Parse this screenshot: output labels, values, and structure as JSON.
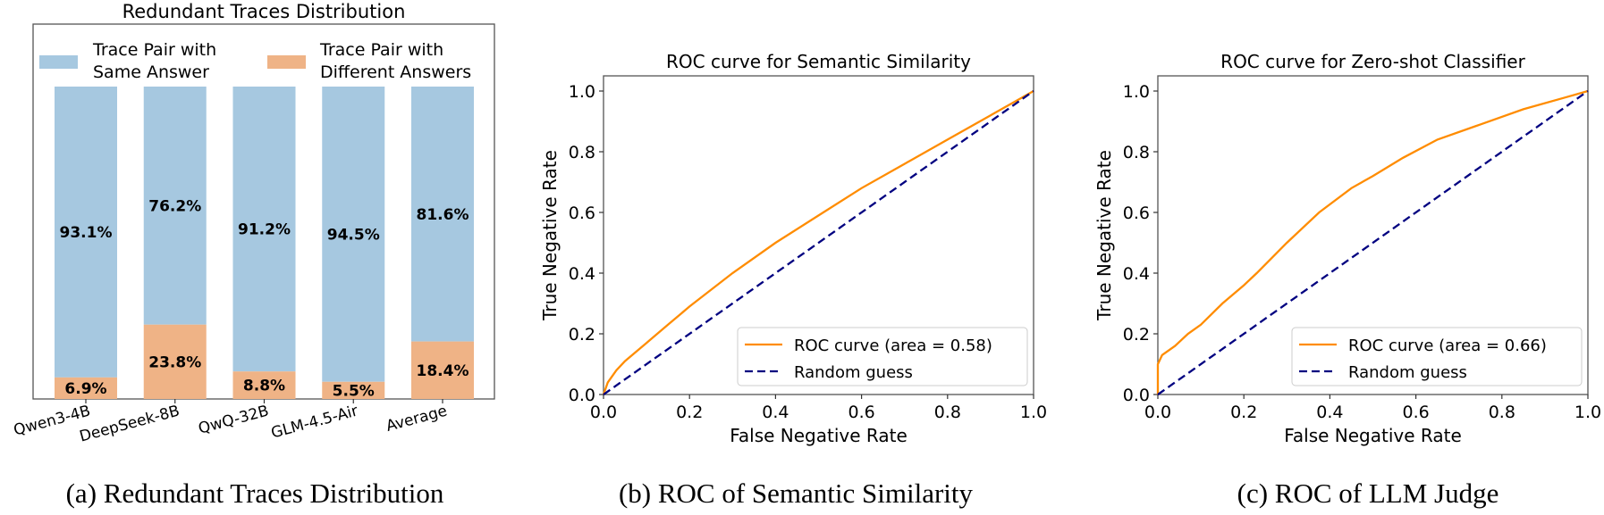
{
  "chart_data": [
    {
      "type": "bar",
      "stacked": true,
      "title": "Redundant Traces Distribution",
      "caption": "(a)  Redundant Traces Distribution",
      "categories": [
        "Qwen3-4B",
        "DeepSeek-8B",
        "QwQ-32B",
        "GLM-4.5-Air",
        "Average"
      ],
      "ylim": [
        0,
        100
      ],
      "legend_position": "top",
      "series": [
        {
          "name": "Trace Pair with Same Answer",
          "legend_lines": [
            "Trace Pair with",
            "Same Answer"
          ],
          "color": "#a6c8e0",
          "values": [
            93.1,
            76.2,
            91.2,
            94.5,
            81.6
          ],
          "labels": [
            "93.1%",
            "76.2%",
            "91.2%",
            "94.5%",
            "81.6%"
          ]
        },
        {
          "name": "Trace Pair with Different Answers",
          "legend_lines": [
            "Trace Pair with",
            "Different Answers"
          ],
          "color": "#efb386",
          "values": [
            6.9,
            23.8,
            8.8,
            5.5,
            18.4
          ],
          "labels": [
            "6.9%",
            "23.8%",
            "8.8%",
            "5.5%",
            "18.4%"
          ]
        }
      ]
    },
    {
      "type": "line",
      "title": "ROC curve for Semantic Similarity",
      "caption": "(b)  ROC of Semantic Similarity",
      "xlabel": "False Negative Rate",
      "ylabel": "True Negative Rate",
      "xlim": [
        0,
        1
      ],
      "ylim": [
        0,
        1.05
      ],
      "xticks": [
        "0.0",
        "0.2",
        "0.4",
        "0.6",
        "0.8",
        "1.0"
      ],
      "yticks": [
        "0.0",
        "0.2",
        "0.4",
        "0.6",
        "0.8",
        "1.0"
      ],
      "legend_position": "lower-right",
      "series": [
        {
          "name": "ROC curve (area = 0.58)",
          "color": "#ff8c00",
          "style": "solid",
          "x": [
            0,
            0.01,
            0.03,
            0.05,
            0.1,
            0.15,
            0.2,
            0.3,
            0.4,
            0.5,
            0.6,
            0.7,
            0.8,
            0.9,
            1.0
          ],
          "y": [
            0,
            0.04,
            0.08,
            0.11,
            0.17,
            0.23,
            0.29,
            0.4,
            0.5,
            0.59,
            0.68,
            0.76,
            0.84,
            0.92,
            1.0
          ]
        },
        {
          "name": "Random guess",
          "color": "#000080",
          "style": "dashed",
          "x": [
            0,
            1
          ],
          "y": [
            0,
            1
          ]
        }
      ]
    },
    {
      "type": "line",
      "title": "ROC curve for Zero-shot Classifier",
      "caption": "(c)  ROC of LLM Judge",
      "xlabel": "False Negative Rate",
      "ylabel": "True Negative Rate",
      "xlim": [
        0,
        1
      ],
      "ylim": [
        0,
        1.05
      ],
      "xticks": [
        "0.0",
        "0.2",
        "0.4",
        "0.6",
        "0.8",
        "1.0"
      ],
      "yticks": [
        "0.0",
        "0.2",
        "0.4",
        "0.6",
        "0.8",
        "1.0"
      ],
      "legend_position": "lower-right",
      "series": [
        {
          "name": "ROC curve (area = 0.66)",
          "color": "#ff8c00",
          "style": "solid",
          "x": [
            0,
            0,
            0.01,
            0.04,
            0.07,
            0.1,
            0.15,
            0.2,
            0.23,
            0.3,
            0.375,
            0.45,
            0.5,
            0.57,
            0.65,
            0.75,
            0.85,
            0.95,
            1.0
          ],
          "y": [
            0,
            0.1,
            0.13,
            0.16,
            0.2,
            0.23,
            0.3,
            0.36,
            0.4,
            0.5,
            0.6,
            0.68,
            0.72,
            0.78,
            0.84,
            0.89,
            0.94,
            0.98,
            1.0
          ]
        },
        {
          "name": "Random guess",
          "color": "#000080",
          "style": "dashed",
          "x": [
            0,
            1
          ],
          "y": [
            0,
            1
          ]
        }
      ]
    }
  ]
}
